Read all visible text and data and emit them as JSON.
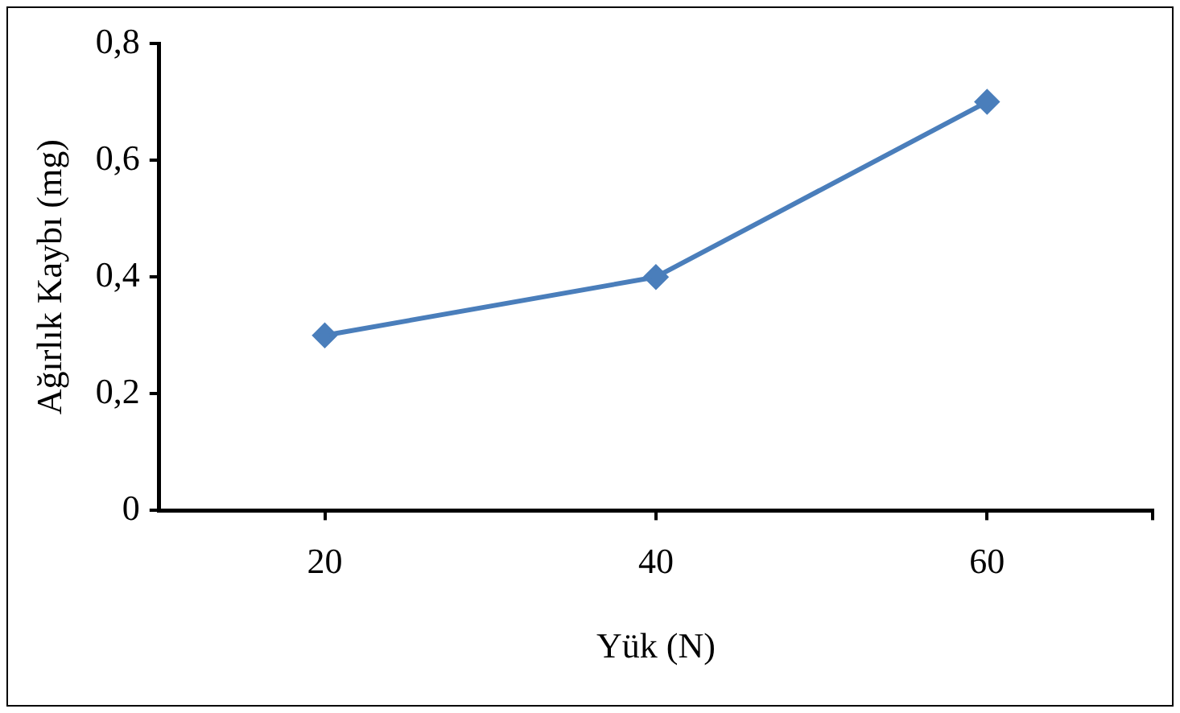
{
  "chart_data": {
    "type": "line",
    "xlabel": "Yük (N)",
    "ylabel": "Ağırlık Kaybı (mg)",
    "x": [
      20,
      40,
      60
    ],
    "series": [
      {
        "color": "#4a7ebb",
        "values": [
          0.3,
          0.4,
          0.7
        ]
      }
    ],
    "xlim": [
      10,
      70
    ],
    "xticks": [
      20,
      40,
      60,
      {
        "value": 70,
        "label": null
      }
    ],
    "ylim": [
      0,
      0.8
    ],
    "yticks": [
      {
        "value": 0,
        "label": "0"
      },
      {
        "value": 0.2,
        "label": "0,2"
      },
      {
        "value": 0.4,
        "label": "0,4"
      },
      {
        "value": 0.6,
        "label": "0,6"
      },
      {
        "value": 0.8,
        "label": "0,8"
      }
    ],
    "grid": false,
    "legend": false,
    "marker": "diamond",
    "line_style": "solid"
  }
}
